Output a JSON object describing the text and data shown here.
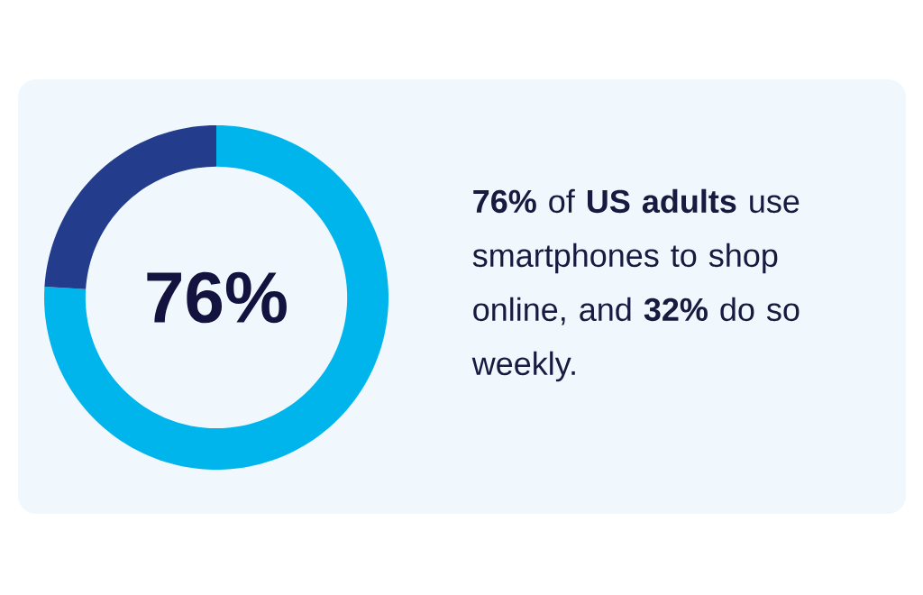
{
  "chart_data": {
    "type": "donut",
    "categories": [
      null,
      null
    ],
    "values": [
      76,
      24
    ],
    "colors": [
      "#00b5ec",
      "#233c8c"
    ],
    "value_labels": [
      "76%",
      null
    ],
    "annotations": [
      "**76%** of **US adults** use smartphones to shop online, and **32%** do so weekly."
    ]
  }
}
